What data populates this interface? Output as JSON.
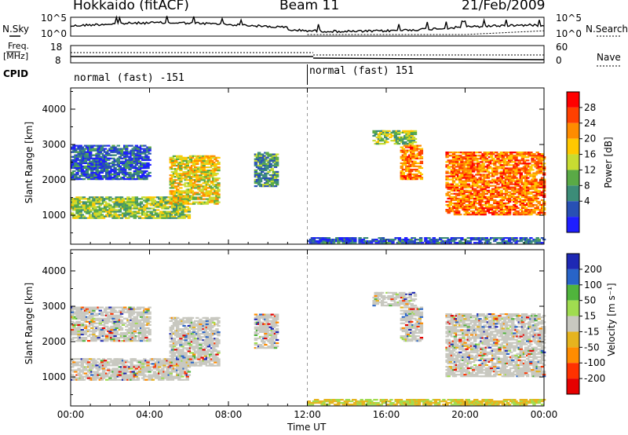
{
  "header": {
    "station": "Hokkaido (fitACF)",
    "beam": "Beam 11",
    "date": "21/Feb/2009"
  },
  "top_panels": {
    "nsky_label": "N.Sky",
    "nsky_ticks": [
      "10^5",
      "10^0"
    ],
    "nsearch_label": "N.Search",
    "nsearch_ticks": [
      "10^5",
      "10^0"
    ],
    "freq_label": "Freq.",
    "freq_unit": "[MHz]",
    "freq_ticks": [
      "18",
      "8"
    ],
    "nave_label": "Nave",
    "nave_ticks": [
      "60",
      "0"
    ],
    "cpid_label": "CPID"
  },
  "cpid_segments": [
    {
      "label": "normal (fast) -151",
      "start_hour": 0,
      "end_hour": 12
    },
    {
      "label": "normal (fast) 151",
      "start_hour": 12,
      "end_hour": 24
    }
  ],
  "power_panel": {
    "ylabel": "Slant Range [km]",
    "colorbar_label": "Power [dB]",
    "colorbar_ticks": [
      "28",
      "24",
      "20",
      "16",
      "12",
      "8",
      "4"
    ],
    "colors": [
      "#ff0000",
      "#ff4000",
      "#ff8c00",
      "#ffc800",
      "#c8dc32",
      "#5aaa46",
      "#3c8c78",
      "#2850b4",
      "#1e1eff"
    ]
  },
  "velocity_panel": {
    "ylabel": "Slant Range [km]",
    "colorbar_label": "Velocity [m s⁻¹]",
    "colorbar_ticks": [
      "200",
      "100",
      "50",
      "15",
      "-15",
      "-50",
      "-100",
      "-200"
    ],
    "colors": [
      "#1e28b4",
      "#2864c8",
      "#50b43c",
      "#a0dc50",
      "#c8c8c0",
      "#e6b41e",
      "#ff8c00",
      "#ff3200",
      "#e60000"
    ]
  },
  "chart_data": {
    "type": "heatmap",
    "title": "Hokkaido (fitACF)  Beam 11  21/Feb/2009",
    "xlabel": "Time UT",
    "ylabel": "Slant Range [km]",
    "x_ticks": [
      "00:00",
      "04:00",
      "08:00",
      "12:00",
      "16:00",
      "20:00",
      "00:00"
    ],
    "x_range_hours": [
      0,
      24
    ],
    "y_ticks": [
      "1000",
      "2000",
      "3000",
      "4000"
    ],
    "y_range_km": [
      180,
      4600
    ],
    "echo_regions": [
      {
        "t0": 0.0,
        "t1": 6.0,
        "r0": 900,
        "r1": 1550,
        "power": 14,
        "vel_class": "gray"
      },
      {
        "t0": 0.0,
        "t1": 4.0,
        "r0": 2000,
        "r1": 3000,
        "power": 6,
        "vel_class": "gray"
      },
      {
        "t0": 5.0,
        "t1": 7.5,
        "r0": 1300,
        "r1": 2700,
        "power": 18,
        "vel_class": "gray"
      },
      {
        "t0": 9.3,
        "t1": 10.5,
        "r0": 1800,
        "r1": 2800,
        "power": 10,
        "vel_class": "gray"
      },
      {
        "t0": 15.3,
        "t1": 17.5,
        "r0": 3000,
        "r1": 3400,
        "power": 14,
        "vel_class": "gray"
      },
      {
        "t0": 16.7,
        "t1": 17.8,
        "r0": 2000,
        "r1": 3000,
        "power": 24,
        "vel_class": "gray"
      },
      {
        "t0": 19.0,
        "t1": 24.0,
        "r0": 1000,
        "r1": 2800,
        "power": 24,
        "vel_class": "gray"
      },
      {
        "t0": 12.0,
        "t1": 24.0,
        "r0": 200,
        "r1": 400,
        "power": 6,
        "vel_class": "orange"
      }
    ]
  },
  "power_grid": {
    "nt": 96,
    "nr": 56,
    "t_start": 0,
    "t_step": 0.25,
    "r_start": 180,
    "r_step": 78.9,
    "encoding": "ranges:[row,c0,c1,color_index]"
  }
}
